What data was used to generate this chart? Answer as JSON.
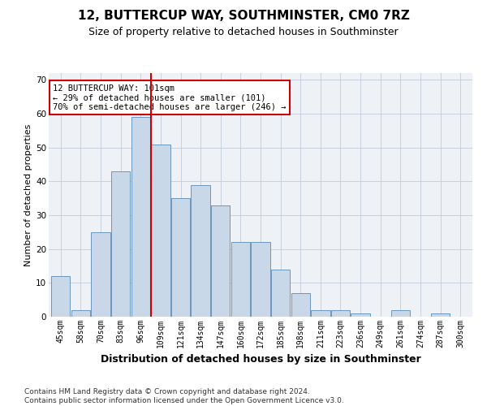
{
  "title": "12, BUTTERCUP WAY, SOUTHMINSTER, CM0 7RZ",
  "subtitle": "Size of property relative to detached houses in Southminster",
  "xlabel": "Distribution of detached houses by size in Southminster",
  "ylabel": "Number of detached properties",
  "categories": [
    "45sqm",
    "58sqm",
    "70sqm",
    "83sqm",
    "96sqm",
    "109sqm",
    "121sqm",
    "134sqm",
    "147sqm",
    "160sqm",
    "172sqm",
    "185sqm",
    "198sqm",
    "211sqm",
    "223sqm",
    "236sqm",
    "249sqm",
    "261sqm",
    "274sqm",
    "287sqm",
    "300sqm"
  ],
  "values": [
    12,
    2,
    25,
    43,
    59,
    51,
    35,
    39,
    33,
    22,
    22,
    14,
    7,
    2,
    2,
    1,
    0,
    2,
    0,
    1,
    0
  ],
  "bar_color": "#c8d8e8",
  "bar_edge_color": "#5a8ab5",
  "vline_x_pos": 4.5,
  "vline_color": "#cc0000",
  "annotation_text": "12 BUTTERCUP WAY: 101sqm\n← 29% of detached houses are smaller (101)\n70% of semi-detached houses are larger (246) →",
  "annotation_box_color": "white",
  "annotation_box_edgecolor": "#cc0000",
  "ylim": [
    0,
    72
  ],
  "yticks": [
    0,
    10,
    20,
    30,
    40,
    50,
    60,
    70
  ],
  "footer": "Contains HM Land Registry data © Crown copyright and database right 2024.\nContains public sector information licensed under the Open Government Licence v3.0.",
  "bg_color": "#eef2f7",
  "grid_color": "#c8d0dc",
  "title_fontsize": 11,
  "subtitle_fontsize": 9,
  "xlabel_fontsize": 9,
  "ylabel_fontsize": 8,
  "tick_fontsize": 7,
  "annotation_fontsize": 7.5,
  "footer_fontsize": 6.5
}
